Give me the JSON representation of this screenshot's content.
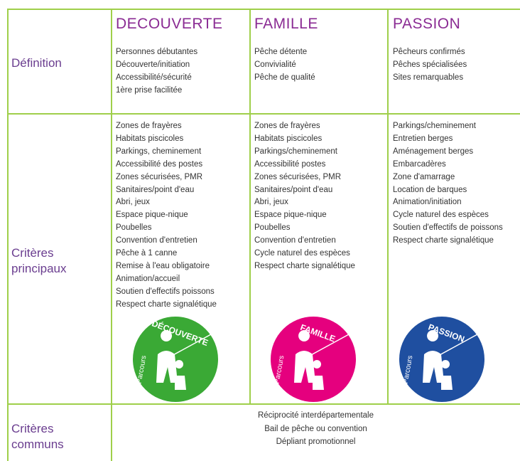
{
  "table": {
    "columns": [
      "DECOUVERTE",
      "FAMILLE",
      "PASSION"
    ],
    "rows": [
      {
        "label": "Définition",
        "cells": [
          [
            "Personnes débutantes",
            "Découverte/initiation",
            "Accessibilité/sécurité",
            "1ère prise facilitée"
          ],
          [
            "Pêche détente",
            "Convivialité",
            "Pêche de qualité"
          ],
          [
            "Pêcheurs confirmés",
            "Pêches spécialisées",
            "Sites remarquables"
          ]
        ]
      },
      {
        "label": "Critères principaux",
        "cells": [
          [
            "Zones de frayères",
            "Habitats piscicoles",
            "Parkings, cheminement",
            "Accessibilité des postes",
            "Zones sécurisées, PMR",
            "Sanitaires/point d'eau",
            "Abri, jeux",
            "Espace pique-nique",
            "Poubelles",
            "Convention d'entretien",
            "Pêche à 1 canne",
            "Remise à l'eau obligatoire",
            "Animation/accueil",
            "Soutien d'effectifs poissons",
            "Respect charte signalétique"
          ],
          [
            "Zones de frayères",
            "Habitats piscicoles",
            "Parkings/cheminement",
            "Accessibilité  postes",
            "Zones sécurisées, PMR",
            "Sanitaires/point d'eau",
            "Abri, jeux",
            "Espace pique-nique",
            "Poubelles",
            "Convention d'entretien",
            "Cycle naturel des espèces",
            "Respect charte signalétique"
          ],
          [
            "Parkings/cheminement",
            "Entretien berges",
            "Aménagement berges",
            "Embarcadères",
            "Zone d'amarrage",
            "Location de barques",
            "Animation/initiation",
            "Cycle naturel des espèces",
            "Soutien d'effectifs de poissons",
            "Respect charte signalétique"
          ]
        ]
      }
    ],
    "common": {
      "label": "Critères communs",
      "items": [
        "Réciprocité interdépartementale",
        "Bail de pêche ou convention",
        "Dépliant promotionnel"
      ]
    }
  },
  "logos": [
    {
      "prefix": "Parcours",
      "name": "DÉCOUVERTE"
    },
    {
      "prefix": "Parcours",
      "name": "FAMILLE"
    },
    {
      "prefix": "Parcours",
      "name": "PASSION"
    }
  ]
}
